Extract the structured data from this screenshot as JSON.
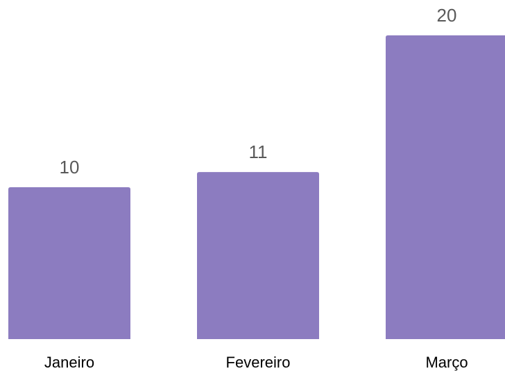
{
  "chart_data": {
    "type": "bar",
    "categories": [
      "Janeiro",
      "Fevereiro",
      "Março"
    ],
    "values": [
      10,
      11,
      20
    ],
    "title": "",
    "xlabel": "",
    "ylabel": "",
    "ylim": [
      0,
      20
    ],
    "grid": false,
    "legend": "none",
    "bar_color": "#8c7cc0",
    "data_labels": true
  }
}
